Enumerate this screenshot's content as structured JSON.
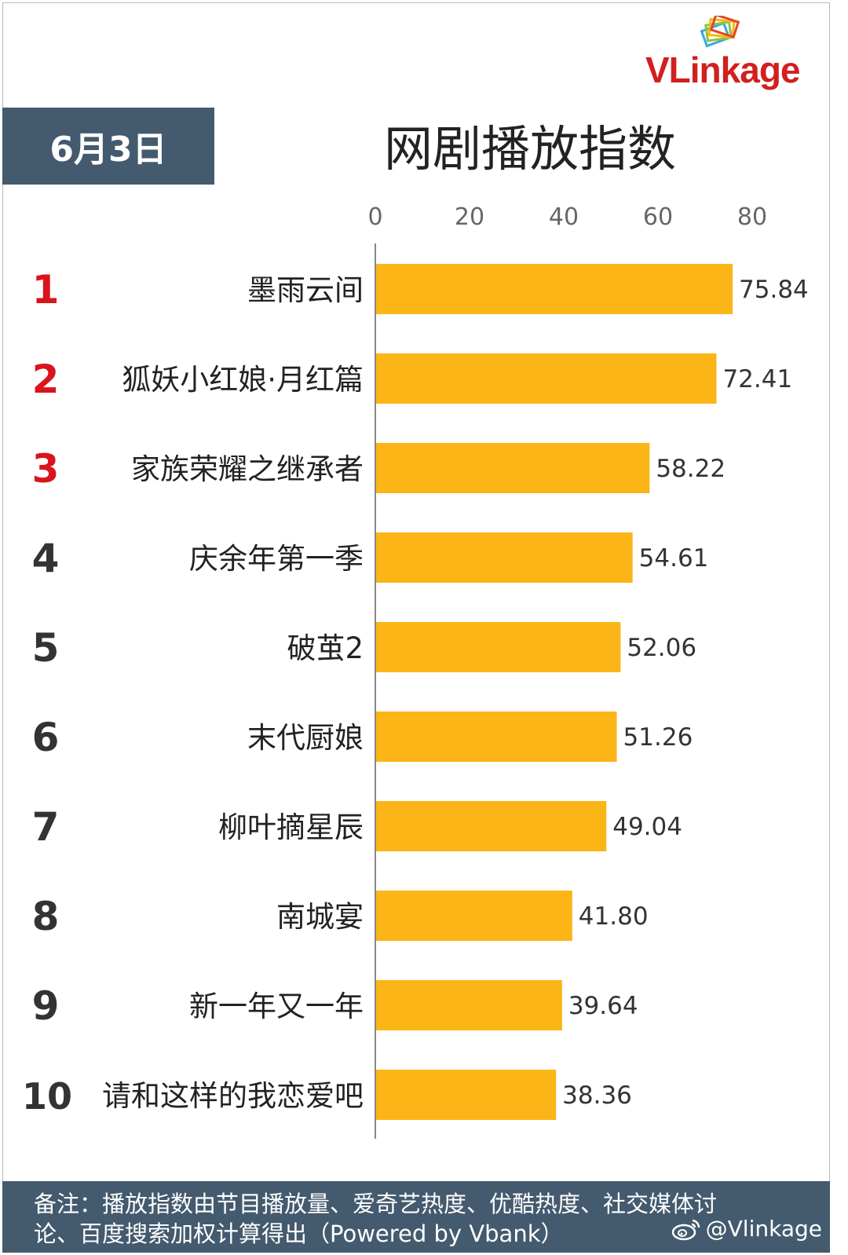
{
  "date": "6月3日",
  "title": "网剧播放指数",
  "logo": {
    "text": "VLinkage",
    "brand_color": "#d21f1f"
  },
  "footer": {
    "note_line1": "备注：播放指数由节目播放量、爱奇艺热度、优酷热度、社交媒体讨",
    "note_line2": "论、百度搜索加权计算得出（Powered by Vbank）",
    "weibo_handle": "@Vlinkage"
  },
  "colors": {
    "bar": "#fbb516",
    "header_bg": "#445a6e",
    "rank_top": "#d9141b",
    "rank_other": "#333333"
  },
  "chart_data": {
    "type": "bar",
    "orientation": "horizontal",
    "xlim": [
      0,
      80
    ],
    "ticks": [
      0,
      20,
      40,
      60,
      80
    ],
    "ranks": [
      "1",
      "2",
      "3",
      "4",
      "5",
      "6",
      "7",
      "8",
      "9",
      "10"
    ],
    "categories": [
      "墨雨云间",
      "狐妖小红娘·月红篇",
      "家族荣耀之继承者",
      "庆余年第一季",
      "破茧2",
      "末代厨娘",
      "柳叶摘星辰",
      "南城宴",
      "新一年又一年",
      "请和这样的我恋爱吧"
    ],
    "values": [
      75.84,
      72.41,
      58.22,
      54.61,
      52.06,
      51.26,
      49.04,
      41.8,
      39.64,
      38.36
    ],
    "labels": [
      "75.84",
      "72.41",
      "58.22",
      "54.61",
      "52.06",
      "51.26",
      "49.04",
      "41.80",
      "39.64",
      "38.36"
    ]
  }
}
